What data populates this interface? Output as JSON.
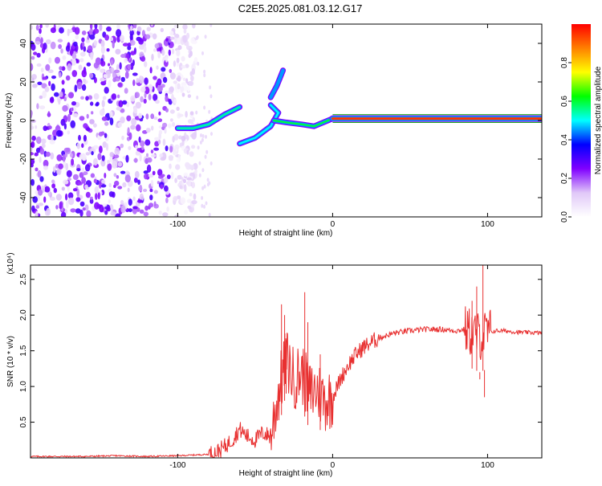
{
  "page": {
    "title": "C2E5.2025.081.03.12.G17"
  },
  "chart_data": [
    {
      "type": "heatmap",
      "title": "C2E5.2025.081.03.12.G17",
      "xlabel": "Height of straight line (km)",
      "ylabel": "Frequency (Hz)",
      "xlim": [
        -195,
        135
      ],
      "ylim": [
        -50,
        50
      ],
      "xticks": [
        -100,
        0,
        100
      ],
      "xtick_labels": [
        "-100",
        "0",
        "100"
      ],
      "yticks": [
        -40,
        -20,
        0,
        20,
        40
      ],
      "ytick_labels": [
        "-40",
        "-20",
        "0",
        "20",
        "40"
      ],
      "colorbar": {
        "label": "Normalized spectral amplitude",
        "range": [
          0,
          1
        ],
        "ticks": [
          0.0,
          0.2,
          0.4,
          0.6,
          0.8
        ],
        "tick_labels": [
          "0.0",
          "0.2",
          "0.4",
          "0.6",
          "0.8"
        ],
        "colormap": [
          "#ffffff",
          "#e0c8f8",
          "#8000ff",
          "#0000ff",
          "#00ffff",
          "#00ff00",
          "#ffff00",
          "#ff8000",
          "#ff0000"
        ]
      },
      "noise_region": {
        "x_range": [
          -195,
          -88
        ],
        "freq_range": [
          -50,
          48
        ],
        "typical_amplitude": 0.2
      },
      "ridges": [
        {
          "name": "",
          "points": [
            [
              -100,
              -4
            ],
            [
              -90,
              -4
            ],
            [
              -80,
              -2
            ],
            [
              -70,
              3
            ],
            [
              -60,
              7
            ]
          ],
          "amplitude": 0.55
        },
        {
          "name": "",
          "points": [
            [
              -60,
              -12
            ],
            [
              -50,
              -9
            ],
            [
              -40,
              -3
            ],
            [
              -35,
              4
            ],
            [
              -40,
              8
            ]
          ],
          "amplitude": 0.5
        },
        {
          "name": "",
          "points": [
            [
              -40,
              12
            ],
            [
              -36,
              18
            ],
            [
              -32,
              26
            ]
          ],
          "amplitude": 0.45
        },
        {
          "name": "",
          "points": [
            [
              -38,
              0
            ],
            [
              -30,
              -1
            ],
            [
              -20,
              -2
            ],
            [
              -12,
              -3
            ],
            [
              0,
              1
            ]
          ],
          "amplitude": 0.6
        },
        {
          "name": "",
          "points": [
            [
              0,
              1
            ],
            [
              40,
              1
            ],
            [
              80,
              1
            ],
            [
              100,
              1
            ],
            [
              135,
              1
            ]
          ],
          "amplitude": 0.95
        }
      ],
      "line_color": "#00a000"
    },
    {
      "type": "line",
      "title": "",
      "xlabel": "Height of straight line (km)",
      "ylabel": "SNR (10 * v/v)",
      "y_multiplier": "(x10⁴)",
      "xlim": [
        -195,
        135
      ],
      "ylim": [
        0,
        2.7
      ],
      "xticks": [
        -100,
        0,
        100
      ],
      "xtick_labels": [
        "-100",
        "0",
        "100"
      ],
      "yticks": [
        0.5,
        1.0,
        1.5,
        2.0,
        2.5
      ],
      "ytick_labels": [
        "0.5",
        "1.0",
        "1.5",
        "2.0",
        "2.5"
      ],
      "color": "#e83030",
      "series": [
        {
          "name": "",
          "x": [
            -195,
            -180,
            -160,
            -140,
            -120,
            -100,
            -90,
            -80,
            -75,
            -70,
            -65,
            -60,
            -55,
            -50,
            -45,
            -40,
            -35,
            -30,
            -25,
            -20,
            -15,
            -10,
            -5,
            0,
            5,
            10,
            15,
            20,
            25,
            30,
            40,
            50,
            60,
            70,
            80,
            85,
            90,
            95,
            100,
            105,
            110,
            120,
            135
          ],
          "y": [
            0.02,
            0.02,
            0.02,
            0.03,
            0.02,
            0.03,
            0.04,
            0.05,
            0.08,
            0.15,
            0.25,
            0.4,
            0.3,
            0.25,
            0.35,
            0.3,
            0.9,
            1.4,
            1.1,
            1.2,
            0.9,
            0.95,
            0.8,
            0.85,
            1.1,
            1.3,
            1.45,
            1.55,
            1.62,
            1.68,
            1.75,
            1.78,
            1.8,
            1.8,
            1.78,
            1.8,
            1.75,
            1.7,
            1.75,
            1.78,
            1.78,
            1.76,
            1.75
          ]
        }
      ],
      "spikes": [
        [
          -33,
          2.15
        ],
        [
          -31,
          2.0
        ],
        [
          -30,
          1.65
        ],
        [
          -18,
          2.32
        ],
        [
          -16,
          1.9
        ],
        [
          -8,
          1.45
        ],
        [
          90,
          2.2
        ],
        [
          93,
          2.4
        ],
        [
          97,
          2.7
        ],
        [
          98,
          0.85
        ],
        [
          95,
          1.1
        ]
      ]
    }
  ]
}
